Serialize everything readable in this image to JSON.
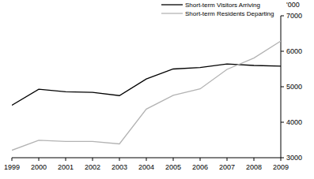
{
  "chart_data": {
    "type": "line",
    "y_label": "'000",
    "x": [
      1999,
      2000,
      2001,
      2002,
      2003,
      2004,
      2005,
      2006,
      2007,
      2008,
      2009
    ],
    "xlim": [
      1999,
      2009
    ],
    "xticks": [
      1999,
      2000,
      2001,
      2002,
      2003,
      2004,
      2005,
      2006,
      2007,
      2008,
      2009
    ],
    "ylim": [
      3000,
      7000
    ],
    "yticks": [
      3000,
      4000,
      5000,
      6000,
      7000
    ],
    "legend": "upper right",
    "series": [
      {
        "name": "Short-term Visitors Arriving",
        "color": "#000000",
        "values": [
          4480,
          4930,
          4860,
          4840,
          4750,
          5220,
          5500,
          5540,
          5640,
          5600,
          5580
        ]
      },
      {
        "name": "Short-term Residents Departing",
        "color": "#b3b3b3",
        "values": [
          3210,
          3490,
          3460,
          3460,
          3390,
          4370,
          4760,
          4940,
          5490,
          5810,
          6290
        ]
      }
    ]
  }
}
